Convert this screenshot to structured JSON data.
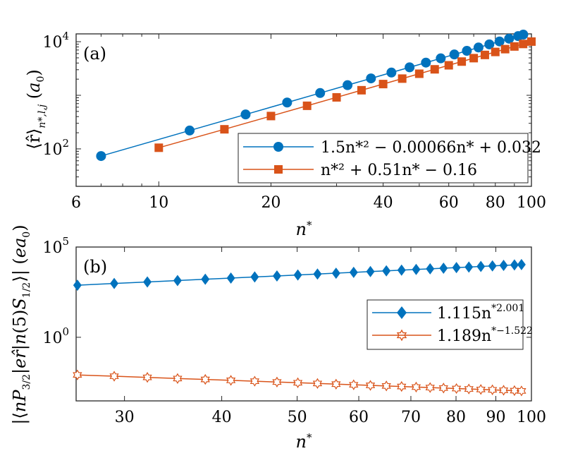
{
  "chart_data": [
    {
      "type": "line",
      "panel_label": "(a)",
      "xlabel": "n*",
      "ylabel": "⟨r̂⟩n*,l,j (a0)",
      "xscale": "log",
      "yscale": "log",
      "xlim": [
        6,
        100
      ],
      "ylim": [
        20,
        14000
      ],
      "xticks": [
        6,
        10,
        20,
        40,
        60,
        80,
        100
      ],
      "xtick_labels": [
        "6",
        "10",
        "20",
        "40",
        "60",
        "80",
        "100"
      ],
      "yticks": [
        100,
        10000
      ],
      "ytick_labels": [
        "10²",
        "10⁴"
      ],
      "ytick_base": [
        "10",
        "10"
      ],
      "ytick_exp": [
        "2",
        "4"
      ],
      "legend_position": "bottom-right",
      "grid": false,
      "series": [
        {
          "name": "1.5n*² − 0.00066n* + 0.032",
          "color": "#0072BD",
          "marker": "circle",
          "x": [
            7.0,
            12.1,
            17.1,
            22.1,
            27.1,
            32.1,
            37.1,
            42.1,
            47.1,
            52.1,
            57.1,
            62.1,
            67.1,
            72.1,
            77.1,
            82.1,
            87.1,
            92.1,
            95.1
          ],
          "values": [
            73.5,
            220,
            439,
            733,
            1102,
            1546,
            2065,
            2659,
            3328,
            4072,
            4891,
            5785,
            6754,
            7798,
            8917,
            10111,
            11380,
            12724,
            13566
          ]
        },
        {
          "name": "n*² + 0.51n* − 0.16",
          "color": "#D95319",
          "marker": "square",
          "x": [
            10.0,
            15.0,
            20.0,
            25.0,
            30.0,
            35.0,
            40.0,
            45.0,
            50.0,
            55.0,
            60.0,
            65.0,
            70.0,
            75.0,
            80.0,
            85.0,
            90.0,
            95.0,
            100.0
          ],
          "values": [
            105,
            232,
            410,
            637,
            915,
            1243,
            1620,
            2048,
            2525,
            3053,
            3630,
            4258,
            4935,
            5663,
            6440,
            7268,
            8145,
            9073,
            10051
          ]
        }
      ]
    },
    {
      "type": "line",
      "panel_label": "(b)",
      "xlabel": "n*",
      "ylabel": "|⟨nP3/2|er̂|n(5)S1/2⟩| (ea0)",
      "xscale": "log",
      "yscale": "log",
      "xlim": [
        26,
        100
      ],
      "ylim": [
        0.0003,
        100000
      ],
      "xticks": [
        30,
        40,
        50,
        60,
        70,
        80,
        90,
        100
      ],
      "xtick_labels": [
        "30",
        "40",
        "50",
        "60",
        "70",
        "80",
        "90",
        "100"
      ],
      "yticks": [
        1,
        100000
      ],
      "ytick_labels": [
        "10⁰",
        "10⁵"
      ],
      "ytick_base": [
        "10",
        "10"
      ],
      "ytick_exp": [
        "0",
        "5"
      ],
      "legend_position": "right",
      "grid": false,
      "series": [
        {
          "name": "1.115n*^2.001",
          "name_base": "1.115n",
          "name_exp": "*2.001",
          "color": "#0072BD",
          "marker": "diamond",
          "x": [
            26.1,
            29.1,
            32.1,
            35.1,
            38.1,
            41.1,
            44.1,
            47.1,
            50.1,
            53.1,
            56.1,
            59.1,
            62.1,
            65.1,
            68.1,
            71.1,
            74.1,
            77.1,
            80.1,
            83.1,
            86.1,
            89.1,
            92.1,
            95.1,
            97.1
          ],
          "values": [
            768,
            955,
            1162,
            1389,
            1637,
            1906,
            2195,
            2504,
            2835,
            3185,
            3556,
            3947,
            4359,
            4791,
            5244,
            5717,
            6210,
            6724,
            7258,
            7813,
            8388,
            8983,
            9599,
            10236,
            10669
          ]
        },
        {
          "name": "1.189n*^−1.522",
          "name_base": "1.189n",
          "name_exp": "*−1.522",
          "color": "#D95319",
          "marker": "hexagram",
          "x": [
            26.1,
            29.1,
            32.1,
            35.1,
            38.1,
            41.1,
            44.1,
            47.1,
            50.1,
            53.1,
            56.1,
            59.1,
            62.1,
            65.1,
            68.1,
            71.1,
            74.1,
            77.1,
            80.1,
            83.1,
            86.1,
            89.1,
            92.1,
            95.1,
            97.1
          ],
          "values": [
            0.00822,
            0.00698,
            0.00602,
            0.0052,
            0.00463,
            0.00412,
            0.00369,
            0.00333,
            0.00303,
            0.00277,
            0.00254,
            0.00234,
            0.00217,
            0.00202,
            0.00188,
            0.00175,
            0.00164,
            0.00154,
            0.00145,
            0.00137,
            0.00129,
            0.00123,
            0.00116,
            0.00111,
            0.00107
          ]
        }
      ]
    }
  ]
}
